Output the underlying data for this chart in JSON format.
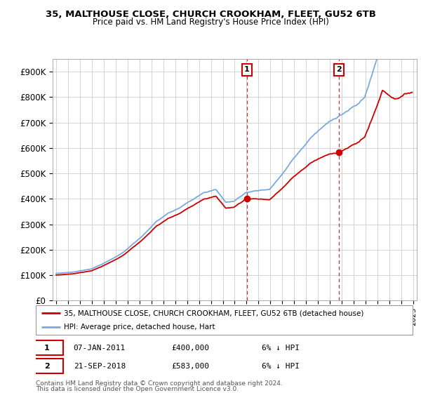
{
  "title_line1": "35, MALTHOUSE CLOSE, CHURCH CROOKHAM, FLEET, GU52 6TB",
  "title_line2": "Price paid vs. HM Land Registry's House Price Index (HPI)",
  "legend_label1": "35, MALTHOUSE CLOSE, CHURCH CROOKHAM, FLEET, GU52 6TB (detached house)",
  "legend_label2": "HPI: Average price, detached house, Hart",
  "sale1_label": "1",
  "sale1_date": "07-JAN-2011",
  "sale1_price": "£400,000",
  "sale1_note": "6% ↓ HPI",
  "sale2_label": "2",
  "sale2_date": "21-SEP-2018",
  "sale2_price": "£583,000",
  "sale2_note": "6% ↓ HPI",
  "footnote1": "Contains HM Land Registry data © Crown copyright and database right 2024.",
  "footnote2": "This data is licensed under the Open Government Licence v3.0.",
  "color_red": "#cc0000",
  "color_blue": "#7aaadd",
  "color_vline": "#cc3333",
  "ylim_min": 0,
  "ylim_max": 950000,
  "yticks": [
    0,
    100000,
    200000,
    300000,
    400000,
    500000,
    600000,
    700000,
    800000,
    900000
  ],
  "ytick_labels": [
    "£0",
    "£100K",
    "£200K",
    "£300K",
    "£400K",
    "£500K",
    "£600K",
    "£700K",
    "£800K",
    "£900K"
  ],
  "sale1_x": 2011.03,
  "sale2_x": 2018.73,
  "sale1_y": 400000,
  "sale2_y": 583000,
  "xmin": 1994.7,
  "xmax": 2025.3,
  "background_color": "#ffffff",
  "grid_color": "#cccccc"
}
